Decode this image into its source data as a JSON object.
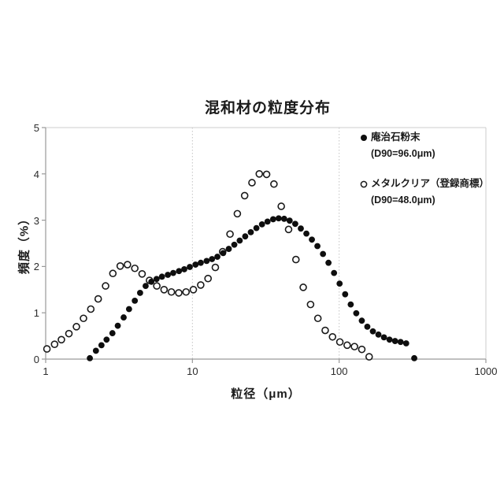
{
  "chart_data": {
    "type": "scatter",
    "title": "混和材の粒度分布",
    "xlabel": "粒径（μm）",
    "ylabel": "頻度（%）",
    "x_scale": "log",
    "y_scale": "linear",
    "xlim": [
      1,
      1000
    ],
    "ylim": [
      0,
      5
    ],
    "x_ticks": [
      1,
      10,
      100,
      1000
    ],
    "x_tick_labels": [
      "1",
      "10",
      "100",
      "1000"
    ],
    "y_ticks": [
      0,
      1,
      2,
      3,
      4,
      5
    ],
    "y_tick_labels": [
      "0",
      "1",
      "2",
      "3",
      "4",
      "5"
    ],
    "grid_x_dotted_at": [
      10,
      100
    ],
    "legend_position": "top-right-inside",
    "series": [
      {
        "name": "庵治石粉末",
        "d90_label": "(D90=96.0μm)",
        "marker": "filled-circle",
        "color": "#0e0e0e",
        "points": [
          [
            2.0,
            0.02
          ],
          [
            2.2,
            0.18
          ],
          [
            2.4,
            0.3
          ],
          [
            2.6,
            0.42
          ],
          [
            2.85,
            0.56
          ],
          [
            3.1,
            0.72
          ],
          [
            3.4,
            0.9
          ],
          [
            3.7,
            1.08
          ],
          [
            4.05,
            1.26
          ],
          [
            4.4,
            1.43
          ],
          [
            4.8,
            1.58
          ],
          [
            5.25,
            1.67
          ],
          [
            5.7,
            1.73
          ],
          [
            6.2,
            1.78
          ],
          [
            6.8,
            1.82
          ],
          [
            7.4,
            1.86
          ],
          [
            8.1,
            1.9
          ],
          [
            8.8,
            1.94
          ],
          [
            9.6,
            1.99
          ],
          [
            10.5,
            2.04
          ],
          [
            11.4,
            2.08
          ],
          [
            12.5,
            2.12
          ],
          [
            13.6,
            2.16
          ],
          [
            14.8,
            2.21
          ],
          [
            16.2,
            2.29
          ],
          [
            17.7,
            2.38
          ],
          [
            19.3,
            2.47
          ],
          [
            21.0,
            2.56
          ],
          [
            22.9,
            2.65
          ],
          [
            25.0,
            2.74
          ],
          [
            27.3,
            2.83
          ],
          [
            29.8,
            2.91
          ],
          [
            32.5,
            2.97
          ],
          [
            35.5,
            3.02
          ],
          [
            38.7,
            3.04
          ],
          [
            42.2,
            3.03
          ],
          [
            46.0,
            2.99
          ],
          [
            50.2,
            2.92
          ],
          [
            54.8,
            2.82
          ],
          [
            59.8,
            2.71
          ],
          [
            65.2,
            2.58
          ],
          [
            71.1,
            2.44
          ],
          [
            77.6,
            2.27
          ],
          [
            84.6,
            2.08
          ],
          [
            92.3,
            1.86
          ],
          [
            100.7,
            1.63
          ],
          [
            109.9,
            1.4
          ],
          [
            119.9,
            1.18
          ],
          [
            130.8,
            0.99
          ],
          [
            142.7,
            0.83
          ],
          [
            155.6,
            0.7
          ],
          [
            169.8,
            0.6
          ],
          [
            185.2,
            0.53
          ],
          [
            202.1,
            0.47
          ],
          [
            220.4,
            0.42
          ],
          [
            240.5,
            0.39
          ],
          [
            262.3,
            0.37
          ],
          [
            286.2,
            0.34
          ],
          [
            325.0,
            0.02
          ]
        ]
      },
      {
        "name": "メタルクリア（登録商標）",
        "d90_label": "(D90=48.0μm)",
        "marker": "open-circle",
        "color": "#1a1a1a",
        "points": [
          [
            1.02,
            0.22
          ],
          [
            1.15,
            0.32
          ],
          [
            1.28,
            0.42
          ],
          [
            1.44,
            0.55
          ],
          [
            1.62,
            0.7
          ],
          [
            1.81,
            0.88
          ],
          [
            2.03,
            1.08
          ],
          [
            2.28,
            1.3
          ],
          [
            2.56,
            1.58
          ],
          [
            2.87,
            1.85
          ],
          [
            3.22,
            2.01
          ],
          [
            3.61,
            2.04
          ],
          [
            4.05,
            1.96
          ],
          [
            4.54,
            1.84
          ],
          [
            5.1,
            1.7
          ],
          [
            5.72,
            1.58
          ],
          [
            6.41,
            1.5
          ],
          [
            7.19,
            1.45
          ],
          [
            8.07,
            1.43
          ],
          [
            9.05,
            1.45
          ],
          [
            10.15,
            1.5
          ],
          [
            11.39,
            1.6
          ],
          [
            12.78,
            1.74
          ],
          [
            14.33,
            1.98
          ],
          [
            16.08,
            2.32
          ],
          [
            18.04,
            2.7
          ],
          [
            20.24,
            3.14
          ],
          [
            22.7,
            3.53
          ],
          [
            25.46,
            3.81
          ],
          [
            28.56,
            4.0
          ],
          [
            32.04,
            3.99
          ],
          [
            35.94,
            3.78
          ],
          [
            40.32,
            3.3
          ],
          [
            45.23,
            2.8
          ],
          [
            50.74,
            2.15
          ],
          [
            56.92,
            1.55
          ],
          [
            63.85,
            1.18
          ],
          [
            71.62,
            0.88
          ],
          [
            80.35,
            0.62
          ],
          [
            90.13,
            0.48
          ],
          [
            101.1,
            0.37
          ],
          [
            113.4,
            0.3
          ],
          [
            127.2,
            0.27
          ],
          [
            142.7,
            0.21
          ],
          [
            160.1,
            0.05
          ]
        ]
      }
    ]
  },
  "colors": {
    "background": "#ffffff",
    "axis": "#9a9a9a",
    "border": "#cccccc",
    "grid": "#c3c3c3",
    "text": "#1a1a1a",
    "tick_text": "#2b2b2b"
  }
}
